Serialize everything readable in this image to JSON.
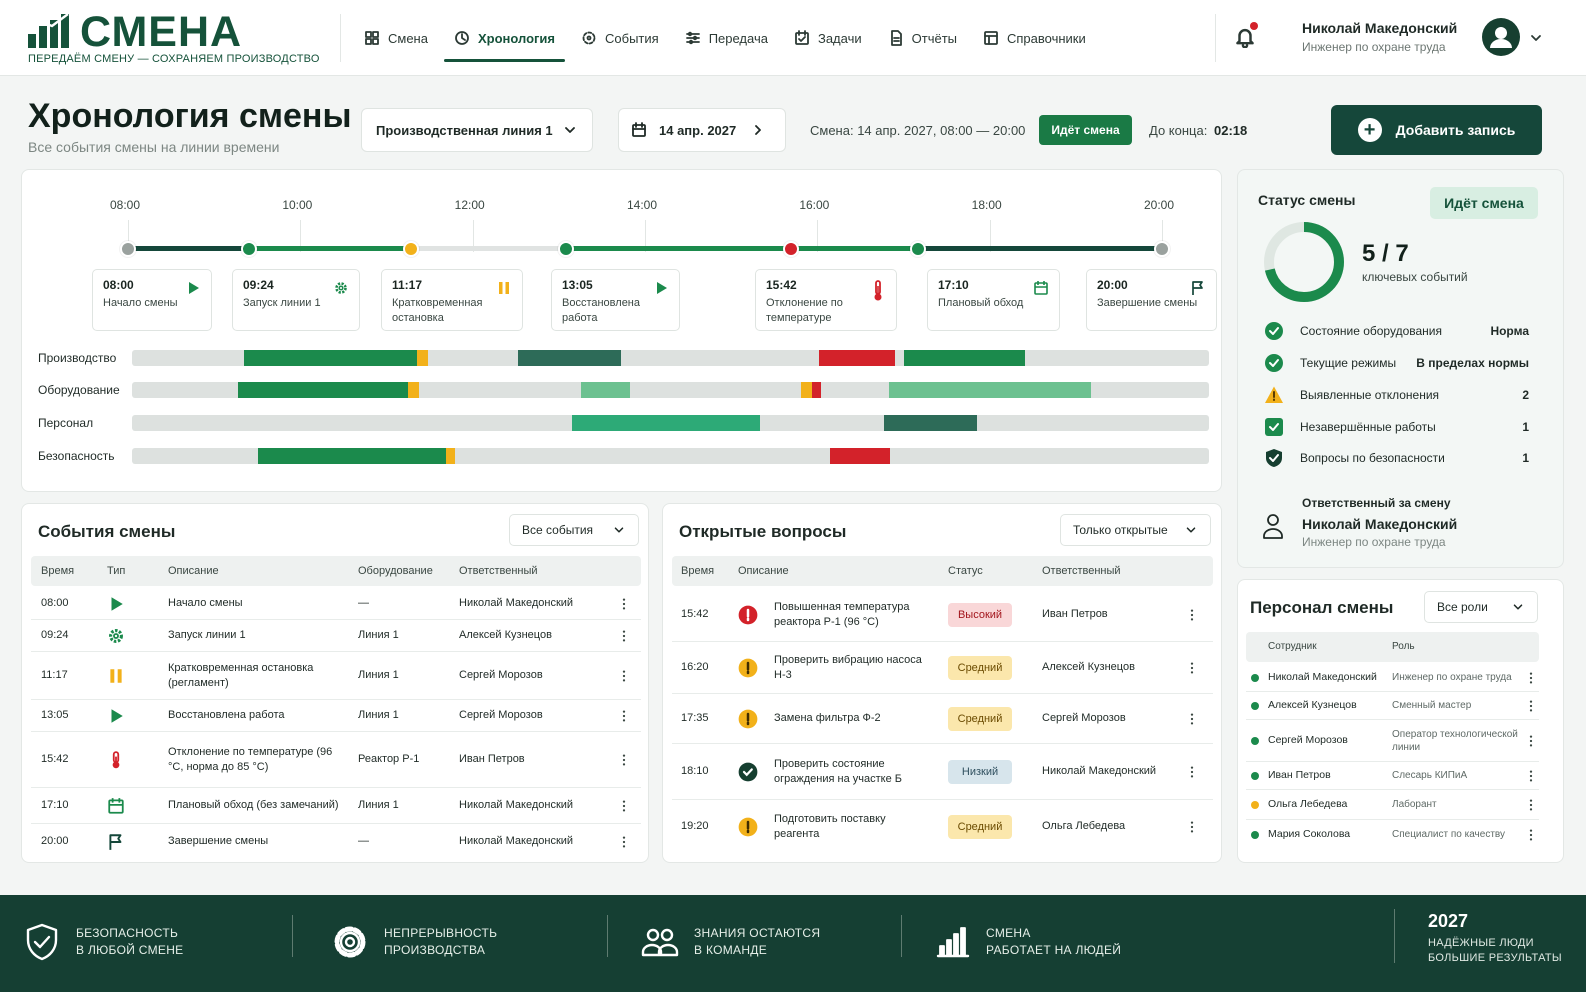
{
  "brand": {
    "name": "СМЕНА",
    "tagline": "ПЕРЕДАЁМ СМЕНУ — СОХРАНЯЕМ ПРОИЗВОДСТВО"
  },
  "nav": [
    {
      "label": "Смена",
      "icon": "home-icon"
    },
    {
      "label": "Хронология",
      "icon": "timeline-icon",
      "active": true
    },
    {
      "label": "События",
      "icon": "events-icon"
    },
    {
      "label": "Передача",
      "icon": "transfer-icon"
    },
    {
      "label": "Задачи",
      "icon": "tasks-icon"
    },
    {
      "label": "Отчёты",
      "icon": "reports-icon"
    },
    {
      "label": "Справочники",
      "icon": "reference-icon"
    }
  ],
  "user": {
    "name": "Николай Македонский",
    "role": "Инженер по охране труда"
  },
  "page": {
    "title": "Хронология смены",
    "subtitle": "Все события смены на линии времени"
  },
  "toolbar": {
    "line": "Производственная линия 1",
    "date": "14 апр. 2027",
    "shift_time": "Смена: 14 апр. 2027, 08:00 — 20:00",
    "shift_badge": "Идёт смена",
    "until_label": "До конца:",
    "until_value": "02:18",
    "add_button": "Добавить запись"
  },
  "colors": {
    "green": "#1b8a4c",
    "dark_green": "#15473a",
    "yellow": "#f2b11a",
    "red": "#d3222a",
    "gray": "#9aa19e",
    "light_green": "#6cc190",
    "teal": "#2daa77",
    "dark_teal": "#2d6b58"
  },
  "timeline": {
    "hours": [
      "08:00",
      "10:00",
      "12:00",
      "14:00",
      "16:00",
      "18:00",
      "20:00"
    ],
    "start": 8,
    "end": 20,
    "nodes": [
      {
        "t": 8.0,
        "status": "gray"
      },
      {
        "t": 9.4,
        "status": "green"
      },
      {
        "t": 11.28,
        "status": "yellow"
      },
      {
        "t": 13.08,
        "status": "green"
      },
      {
        "t": 15.7,
        "status": "red"
      },
      {
        "t": 17.17,
        "status": "green"
      },
      {
        "t": 20.0,
        "status": "gray"
      }
    ],
    "events": [
      {
        "time": "08:00",
        "label": "Начало смены",
        "icon": "play-icon"
      },
      {
        "time": "09:24",
        "label": "Запуск линии 1",
        "icon": "gear-icon"
      },
      {
        "time": "11:17",
        "label": "Кратковременная остановка",
        "icon": "pause-icon"
      },
      {
        "time": "13:05",
        "label": "Восстановлена работа",
        "icon": "play-icon"
      },
      {
        "time": "15:42",
        "label": "Отклонение по температуре",
        "icon": "thermometer-icon"
      },
      {
        "time": "17:10",
        "label": "Плановый обход",
        "icon": "calendar-icon"
      },
      {
        "time": "20:00",
        "label": "Завершение смены",
        "icon": "flag-icon"
      }
    ],
    "lanes": [
      {
        "label": "Производство",
        "bars": [
          {
            "from": 9.25,
            "to": 11.18,
            "color": "green"
          },
          {
            "from": 11.18,
            "to": 11.3,
            "color": "yellow"
          },
          {
            "from": 12.3,
            "to": 13.45,
            "color": "dark_teal"
          },
          {
            "from": 15.65,
            "to": 16.5,
            "color": "red"
          },
          {
            "from": 16.6,
            "to": 17.95,
            "color": "green"
          }
        ]
      },
      {
        "label": "Оборудование",
        "bars": [
          {
            "from": 9.18,
            "to": 11.07,
            "color": "green"
          },
          {
            "from": 11.07,
            "to": 11.2,
            "color": "yellow"
          },
          {
            "from": 13.0,
            "to": 13.55,
            "color": "light_green"
          },
          {
            "from": 15.45,
            "to": 15.58,
            "color": "yellow"
          },
          {
            "from": 15.58,
            "to": 15.68,
            "color": "red"
          },
          {
            "from": 16.43,
            "to": 18.68,
            "color": "light_green"
          }
        ]
      },
      {
        "label": "Персонал",
        "bars": [
          {
            "from": 12.9,
            "to": 15.0,
            "color": "teal"
          },
          {
            "from": 16.38,
            "to": 17.42,
            "color": "dark_teal"
          }
        ]
      },
      {
        "label": "Безопасность",
        "bars": [
          {
            "from": 9.4,
            "to": 11.5,
            "color": "green"
          },
          {
            "from": 11.5,
            "to": 11.6,
            "color": "yellow"
          },
          {
            "from": 15.78,
            "to": 16.45,
            "color": "red"
          }
        ]
      }
    ]
  },
  "status": {
    "title": "Статус смены",
    "badge": "Идёт смена",
    "count": "5 / 7",
    "count_label": "ключевых событий",
    "progress": 0.714,
    "rows": [
      {
        "label": "Состояние оборудования",
        "value": "Норма",
        "icon": "check-circle-icon"
      },
      {
        "label": "Текущие режимы",
        "value": "В пределах нормы",
        "icon": "check-circle-icon"
      },
      {
        "label": "Выявленные отклонения",
        "value": "2",
        "icon": "warning-icon"
      },
      {
        "label": "Незавершённые работы",
        "value": "1",
        "icon": "check-square-icon"
      },
      {
        "label": "Вопросы по безопасности",
        "value": "1",
        "icon": "shield-check-icon"
      }
    ],
    "responsible_label": "Ответственный за смену",
    "responsible_name": "Николай Македонский",
    "responsible_role": "Инженер по охране труда"
  },
  "events_table": {
    "title": "События смены",
    "filter": "Все события",
    "columns": [
      "Время",
      "Тип",
      "Описание",
      "Оборудование",
      "Ответственный"
    ],
    "rows": [
      {
        "time": "08:00",
        "icon": "play-icon",
        "desc": "Начало смены",
        "equip": "—",
        "resp": "Николай Македонский"
      },
      {
        "time": "09:24",
        "icon": "gear-icon",
        "desc": "Запуск линии 1",
        "equip": "Линия 1",
        "resp": "Алексей Кузнецов"
      },
      {
        "time": "11:17",
        "icon": "pause-icon",
        "desc": "Кратковременная остановка (регламент)",
        "equip": "Линия 1",
        "resp": "Сергей Морозов"
      },
      {
        "time": "13:05",
        "icon": "play-icon",
        "desc": "Восстановлена работа",
        "equip": "Линия 1",
        "resp": "Сергей Морозов"
      },
      {
        "time": "15:42",
        "icon": "thermometer-icon",
        "desc": "Отклонение по температуре (96 °C, норма до 85 °C)",
        "equip": "Реактор Р-1",
        "resp": "Иван Петров"
      },
      {
        "time": "17:10",
        "icon": "calendar-icon",
        "desc": "Плановый обход (без замечаний)",
        "equip": "Линия 1",
        "resp": "Николай Македонский"
      },
      {
        "time": "20:00",
        "icon": "flag-icon",
        "desc": "Завершение смены",
        "equip": "—",
        "resp": "Николай Македонский"
      }
    ]
  },
  "issues_table": {
    "title": "Открытые вопросы",
    "filter": "Только открытые",
    "columns": [
      "Время",
      "Описание",
      "Статус",
      "Ответственный"
    ],
    "rows": [
      {
        "time": "15:42",
        "icon": "alert-red-icon",
        "desc": "Повышенная температура реактора Р-1 (96 °C)",
        "status": "Высокий",
        "level": "high",
        "resp": "Иван Петров"
      },
      {
        "time": "16:20",
        "icon": "alert-yellow-icon",
        "desc": "Проверить вибрацию насоса Н-3",
        "status": "Средний",
        "level": "mid",
        "resp": "Алексей Кузнецов"
      },
      {
        "time": "17:35",
        "icon": "alert-yellow-icon",
        "desc": "Замена фильтра Ф-2",
        "status": "Средний",
        "level": "mid",
        "resp": "Сергей Морозов"
      },
      {
        "time": "18:10",
        "icon": "shield-check-icon",
        "desc": "Проверить состояние ограждения на участке Б",
        "status": "Низкий",
        "level": "low",
        "resp": "Николай Македонский"
      },
      {
        "time": "19:20",
        "icon": "alert-yellow-icon",
        "desc": "Подготовить поставку реагента",
        "status": "Средний",
        "level": "mid",
        "resp": "Ольга Лебедева"
      }
    ]
  },
  "staff": {
    "title": "Персонал смены",
    "filter": "Все роли",
    "columns": [
      "Сотрудник",
      "Роль"
    ],
    "rows": [
      {
        "name": "Николай Македонский",
        "role": "Инженер по охране труда",
        "status": "green"
      },
      {
        "name": "Алексей Кузнецов",
        "role": "Сменный мастер",
        "status": "green"
      },
      {
        "name": "Сергей Морозов",
        "role": "Оператор технологической линии",
        "status": "green"
      },
      {
        "name": "Иван Петров",
        "role": "Слесарь КИПиА",
        "status": "green"
      },
      {
        "name": "Ольга Лебедева",
        "role": "Лаборант",
        "status": "yellow"
      },
      {
        "name": "Мария Соколова",
        "role": "Специалист по качеству",
        "status": "green"
      }
    ]
  },
  "footer": {
    "items": [
      {
        "icon": "shield-icon",
        "text": "БЕЗОПАСНОСТЬ\nВ ЛЮБОЙ СМЕНЕ"
      },
      {
        "icon": "gear-icon",
        "text": "НЕПРЕРЫВНОСТЬ\nПРОИЗВОДСТВА"
      },
      {
        "icon": "team-icon",
        "text": "ЗНАНИЯ ОСТАЮТСЯ\nВ КОМАНДЕ"
      },
      {
        "icon": "bar-chart-icon",
        "text": "СМЕНА\nРАБОТАЕТ НА ЛЮДЕЙ"
      }
    ],
    "year": "2027",
    "tagline": "НАДЁЖНЫЕ ЛЮДИ\nБОЛЬШИЕ РЕЗУЛЬТАТЫ"
  }
}
